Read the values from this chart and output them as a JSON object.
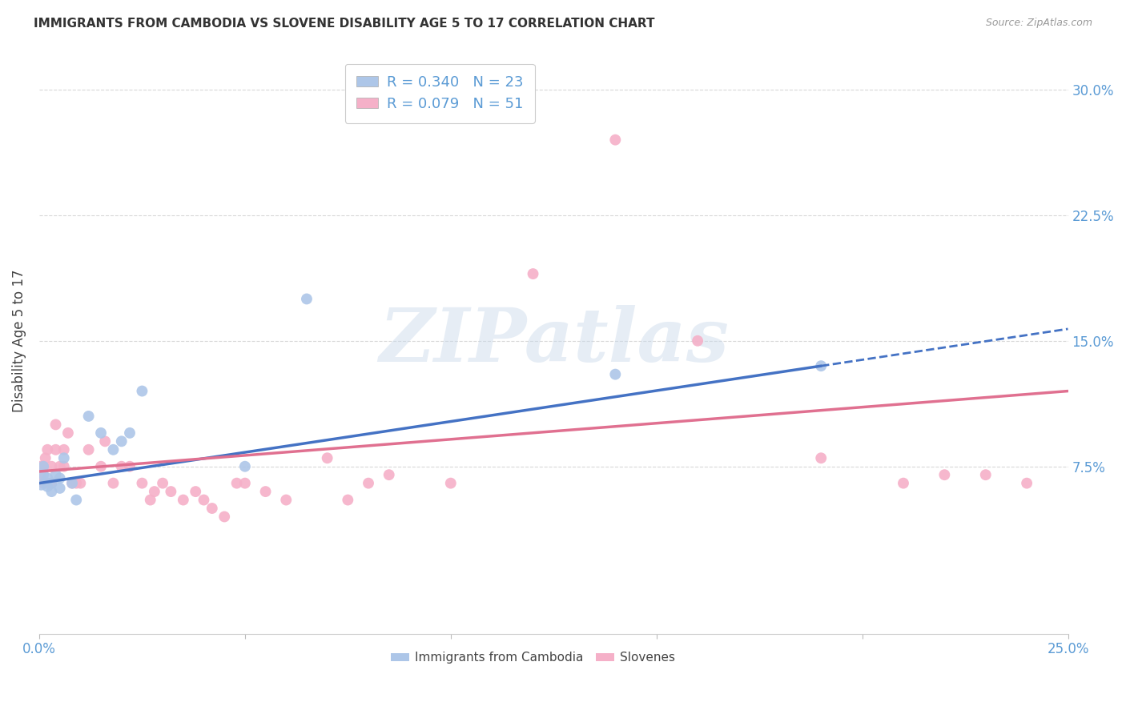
{
  "title": "IMMIGRANTS FROM CAMBODIA VS SLOVENE DISABILITY AGE 5 TO 17 CORRELATION CHART",
  "source": "Source: ZipAtlas.com",
  "ylabel": "Disability Age 5 to 17",
  "xlim": [
    0.0,
    0.25
  ],
  "ylim": [
    -0.025,
    0.325
  ],
  "ytick_values": [
    0.075,
    0.15,
    0.225,
    0.3
  ],
  "ytick_labels": [
    "7.5%",
    "15.0%",
    "22.5%",
    "30.0%"
  ],
  "xtick_values": [
    0.0,
    0.05,
    0.1,
    0.15,
    0.2,
    0.25
  ],
  "xtick_labels": [
    "0.0%",
    "",
    "",
    "",
    "",
    "25.0%"
  ],
  "background_color": "#ffffff",
  "grid_color": "#d8d8d8",
  "series1_color": "#adc6e8",
  "series2_color": "#f5b0c8",
  "line1_color": "#4472c4",
  "line2_color": "#e07090",
  "series1_label": "Immigrants from Cambodia",
  "series2_label": "Slovenes",
  "R1": 0.34,
  "N1": 23,
  "R2": 0.079,
  "N2": 51,
  "cambodia_x": [
    0.0005,
    0.001,
    0.001,
    0.002,
    0.002,
    0.003,
    0.003,
    0.004,
    0.005,
    0.005,
    0.006,
    0.008,
    0.009,
    0.012,
    0.015,
    0.018,
    0.02,
    0.022,
    0.025,
    0.05,
    0.065,
    0.14,
    0.19
  ],
  "cambodia_y": [
    0.064,
    0.07,
    0.075,
    0.063,
    0.068,
    0.06,
    0.065,
    0.07,
    0.062,
    0.068,
    0.08,
    0.065,
    0.055,
    0.105,
    0.095,
    0.085,
    0.09,
    0.095,
    0.12,
    0.075,
    0.175,
    0.13,
    0.135
  ],
  "slovene_x": [
    0.0003,
    0.0005,
    0.001,
    0.001,
    0.0015,
    0.002,
    0.002,
    0.003,
    0.003,
    0.004,
    0.004,
    0.005,
    0.006,
    0.006,
    0.007,
    0.008,
    0.009,
    0.01,
    0.012,
    0.015,
    0.016,
    0.018,
    0.02,
    0.022,
    0.025,
    0.027,
    0.028,
    0.03,
    0.032,
    0.035,
    0.038,
    0.04,
    0.042,
    0.045,
    0.048,
    0.05,
    0.055,
    0.06,
    0.07,
    0.075,
    0.08,
    0.085,
    0.1,
    0.12,
    0.14,
    0.16,
    0.19,
    0.21,
    0.22,
    0.23,
    0.24
  ],
  "slovene_y": [
    0.075,
    0.07,
    0.065,
    0.075,
    0.08,
    0.065,
    0.085,
    0.065,
    0.075,
    0.085,
    0.1,
    0.075,
    0.085,
    0.075,
    0.095,
    0.065,
    0.065,
    0.065,
    0.085,
    0.075,
    0.09,
    0.065,
    0.075,
    0.075,
    0.065,
    0.055,
    0.06,
    0.065,
    0.06,
    0.055,
    0.06,
    0.055,
    0.05,
    0.045,
    0.065,
    0.065,
    0.06,
    0.055,
    0.08,
    0.055,
    0.065,
    0.07,
    0.065,
    0.19,
    0.27,
    0.15,
    0.08,
    0.065,
    0.07,
    0.07,
    0.065
  ],
  "line1_x_start": 0.0,
  "line1_x_end": 0.19,
  "line1_x_dash_end": 0.25,
  "line1_y_start": 0.065,
  "line1_y_end": 0.135,
  "line2_x_start": 0.0,
  "line2_x_end": 0.25,
  "line2_y_start": 0.072,
  "line2_y_end": 0.12,
  "watermark_text": "ZIPatlas",
  "marker_size": 100,
  "title_fontsize": 11,
  "label_fontsize": 12,
  "tick_fontsize": 12,
  "legend_fontsize": 13
}
